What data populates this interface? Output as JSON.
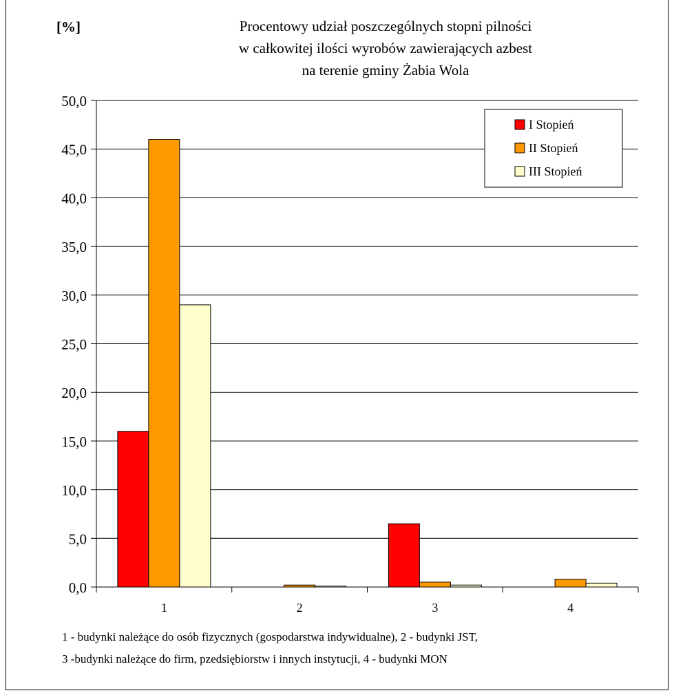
{
  "chart_data": {
    "type": "bar",
    "title_lines": [
      "Procentowy udział poszczególnych stopni pilności",
      "w całkowitej ilości wyrobów zawierających azbest",
      "na terenie gminy Żabia Wola"
    ],
    "ylabel": "[%]",
    "xlabel": "",
    "categories": [
      "1",
      "2",
      "3",
      "4"
    ],
    "series": [
      {
        "name": "I Stopień",
        "color": "#ff0000",
        "values": [
          16.0,
          0.0,
          6.5,
          0.0
        ]
      },
      {
        "name": "II Stopień",
        "color": "#ff9900",
        "values": [
          46.0,
          0.2,
          0.5,
          0.8
        ]
      },
      {
        "name": "III Stopień",
        "color": "#ffffcc",
        "values": [
          29.0,
          0.1,
          0.2,
          0.4
        ]
      }
    ],
    "ylim": [
      0,
      50
    ],
    "yticks": [
      "0,0",
      "5,0",
      "10,0",
      "15,0",
      "20,0",
      "25,0",
      "30,0",
      "35,0",
      "40,0",
      "45,0",
      "50,0"
    ],
    "grid": true,
    "legend_position": "top-right"
  },
  "notes": {
    "line1": "1 - budynki należące do osób fizycznych (gospodarstwa indywidualne),    2 - budynki JST,",
    "line2": "3 -budynki należące do firm, pzedsiębiorstw i innych instytucji, 4 - budynki MON"
  }
}
